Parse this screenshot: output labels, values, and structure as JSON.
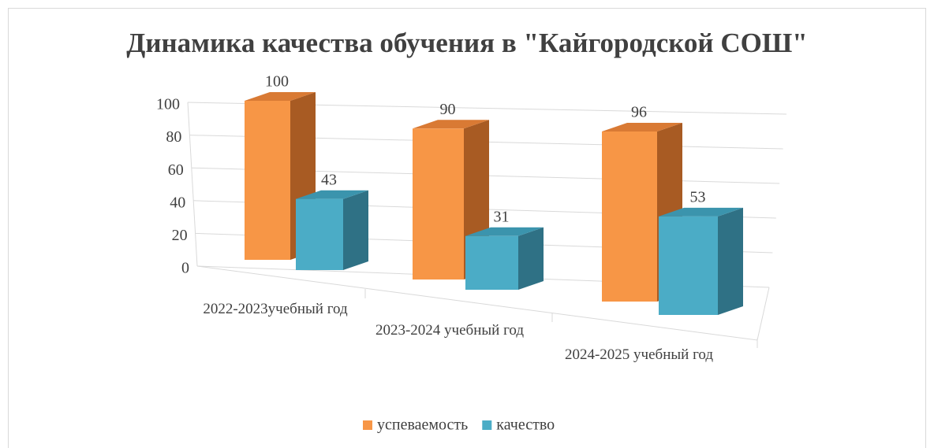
{
  "chart_data": {
    "type": "bar3d",
    "title": "Динамика качества обучения в \"Кайгородской СОШ\"",
    "categories": [
      "2022-2023учебный год",
      "2023-2024 учебный год",
      "2024-2025 учебный год"
    ],
    "series": [
      {
        "name": "успеваемость",
        "color": "#f79646",
        "values": [
          100,
          90,
          96
        ]
      },
      {
        "name": "качество",
        "color": "#4bacc6",
        "values": [
          43,
          31,
          53
        ]
      }
    ],
    "ylim": [
      0,
      100
    ],
    "yticks": [
      0,
      20,
      40,
      60,
      80,
      100
    ],
    "grid": true,
    "legend": "bottom"
  }
}
